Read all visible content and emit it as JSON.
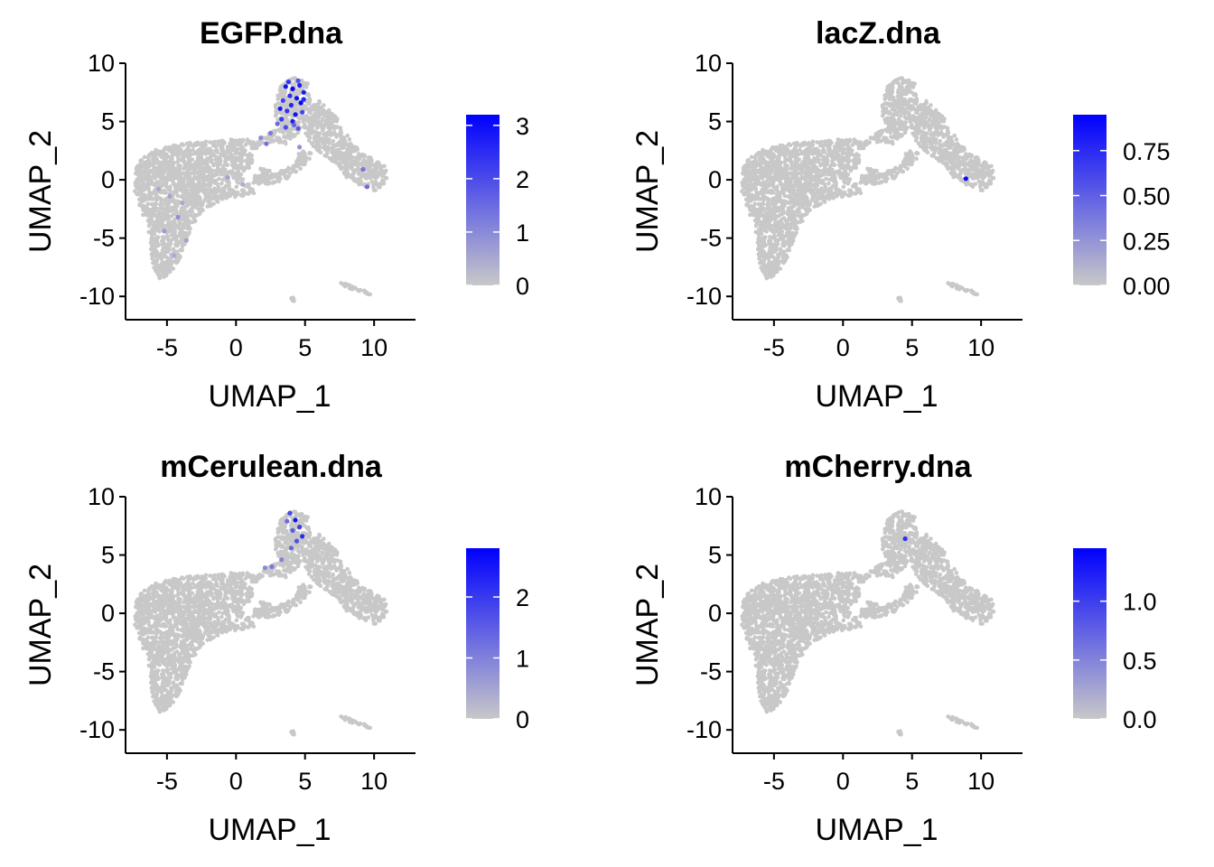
{
  "colors": {
    "low": "#C8C8C8",
    "high": "#0000FF",
    "axis": "#000000"
  },
  "chart_data": [
    {
      "type": "scatter",
      "title": "EGFP.dna",
      "xlabel": "UMAP_1",
      "ylabel": "UMAP_2",
      "xlim": [
        -8,
        13
      ],
      "ylim": [
        -12,
        10
      ],
      "xticks": [
        -5,
        0,
        5,
        10
      ],
      "yticks": [
        -10,
        -5,
        0,
        5,
        10
      ],
      "xtick_labels": [
        "-5",
        "0",
        "5",
        "10"
      ],
      "ytick_labels": [
        "-10",
        "-5",
        "0",
        "5",
        "10"
      ],
      "color_scale": {
        "min": 0,
        "max": 3.2,
        "ticks": [
          0,
          1,
          2,
          3
        ],
        "tick_labels": [
          "0",
          "1",
          "2",
          "3"
        ]
      },
      "grid": false,
      "expressing_points": [
        [
          3.6,
          8.0,
          2.9
        ],
        [
          4.1,
          7.8,
          3.1
        ],
        [
          4.6,
          8.1,
          2.7
        ],
        [
          3.9,
          7.2,
          2.5
        ],
        [
          4.4,
          7.0,
          3.0
        ],
        [
          4.9,
          7.5,
          2.8
        ],
        [
          3.4,
          6.8,
          2.2
        ],
        [
          4.0,
          6.4,
          2.6
        ],
        [
          4.7,
          6.6,
          3.1
        ],
        [
          3.7,
          5.9,
          2.4
        ],
        [
          4.3,
          5.6,
          2.9
        ],
        [
          4.8,
          5.8,
          2.1
        ],
        [
          3.3,
          5.2,
          2.3
        ],
        [
          4.1,
          5.0,
          2.7
        ],
        [
          3.6,
          4.5,
          2.0
        ],
        [
          4.5,
          4.4,
          1.8
        ],
        [
          3.0,
          4.8,
          1.5
        ],
        [
          4.9,
          6.9,
          2.6
        ],
        [
          3.8,
          8.4,
          2.4
        ],
        [
          4.5,
          8.5,
          1.9
        ],
        [
          3.2,
          6.1,
          2.8
        ],
        [
          4.2,
          4.7,
          1.6
        ],
        [
          2.5,
          4.0,
          1.2
        ],
        [
          2.2,
          3.1,
          1.4
        ],
        [
          1.8,
          3.6,
          1.0
        ],
        [
          4.6,
          2.8,
          0.9
        ],
        [
          9.2,
          0.9,
          1.3
        ],
        [
          9.5,
          -0.6,
          1.5
        ],
        [
          -4.8,
          -1.4,
          0.6
        ],
        [
          -5.6,
          -0.8,
          0.5
        ],
        [
          -4.2,
          -3.2,
          0.9
        ],
        [
          -5.2,
          -4.4,
          0.7
        ],
        [
          -3.9,
          -2.0,
          0.5
        ],
        [
          -3.6,
          -5.2,
          0.6
        ],
        [
          -0.6,
          0.2,
          0.6
        ],
        [
          -4.5,
          -6.5,
          0.5
        ],
        [
          0.5,
          -0.4,
          0.4
        ]
      ]
    },
    {
      "type": "scatter",
      "title": "lacZ.dna",
      "xlabel": "UMAP_1",
      "ylabel": "UMAP_2",
      "xlim": [
        -8,
        13
      ],
      "ylim": [
        -12,
        10
      ],
      "xticks": [
        -5,
        0,
        5,
        10
      ],
      "yticks": [
        -10,
        -5,
        0,
        5,
        10
      ],
      "xtick_labels": [
        "-5",
        "0",
        "5",
        "10"
      ],
      "ytick_labels": [
        "-10",
        "-5",
        "0",
        "5",
        "10"
      ],
      "color_scale": {
        "min": 0,
        "max": 0.95,
        "ticks": [
          0,
          0.25,
          0.5,
          0.75
        ],
        "tick_labels": [
          "0.00",
          "0.25",
          "0.50",
          "0.75"
        ]
      },
      "grid": false,
      "expressing_points": [
        [
          8.9,
          0.1,
          0.9
        ]
      ]
    },
    {
      "type": "scatter",
      "title": "mCerulean.dna",
      "xlabel": "UMAP_1",
      "ylabel": "UMAP_2",
      "xlim": [
        -8,
        13
      ],
      "ylim": [
        -12,
        10
      ],
      "xticks": [
        -5,
        0,
        5,
        10
      ],
      "yticks": [
        -10,
        -5,
        0,
        5,
        10
      ],
      "xtick_labels": [
        "-5",
        "0",
        "5",
        "10"
      ],
      "ytick_labels": [
        "-10",
        "-5",
        "0",
        "5",
        "10"
      ],
      "color_scale": {
        "min": 0,
        "max": 2.8,
        "ticks": [
          0,
          1,
          2
        ],
        "tick_labels": [
          "0",
          "1",
          "2"
        ]
      },
      "grid": false,
      "expressing_points": [
        [
          3.9,
          8.6,
          1.8
        ],
        [
          4.3,
          8.0,
          2.5
        ],
        [
          4.6,
          7.4,
          2.0
        ],
        [
          4.1,
          7.1,
          1.5
        ],
        [
          3.7,
          7.9,
          1.3
        ],
        [
          4.8,
          6.6,
          2.2
        ],
        [
          4.4,
          6.2,
          1.7
        ],
        [
          2.6,
          4.0,
          1.1
        ],
        [
          2.1,
          3.9,
          0.9
        ],
        [
          3.3,
          4.6,
          1.0
        ],
        [
          4.0,
          5.6,
          1.4
        ]
      ]
    },
    {
      "type": "scatter",
      "title": "mCherry.dna",
      "xlabel": "UMAP_1",
      "ylabel": "UMAP_2",
      "xlim": [
        -8,
        13
      ],
      "ylim": [
        -12,
        10
      ],
      "xticks": [
        -5,
        0,
        5,
        10
      ],
      "yticks": [
        -10,
        -5,
        0,
        5,
        10
      ],
      "xtick_labels": [
        "-5",
        "0",
        "5",
        "10"
      ],
      "ytick_labels": [
        "-10",
        "-5",
        "0",
        "5",
        "10"
      ],
      "color_scale": {
        "min": 0,
        "max": 1.45,
        "ticks": [
          0,
          0.5,
          1.0
        ],
        "tick_labels": [
          "0.0",
          "0.5",
          "1.0"
        ]
      },
      "grid": false,
      "expressing_points": [
        [
          4.5,
          6.4,
          1.1
        ]
      ]
    }
  ]
}
